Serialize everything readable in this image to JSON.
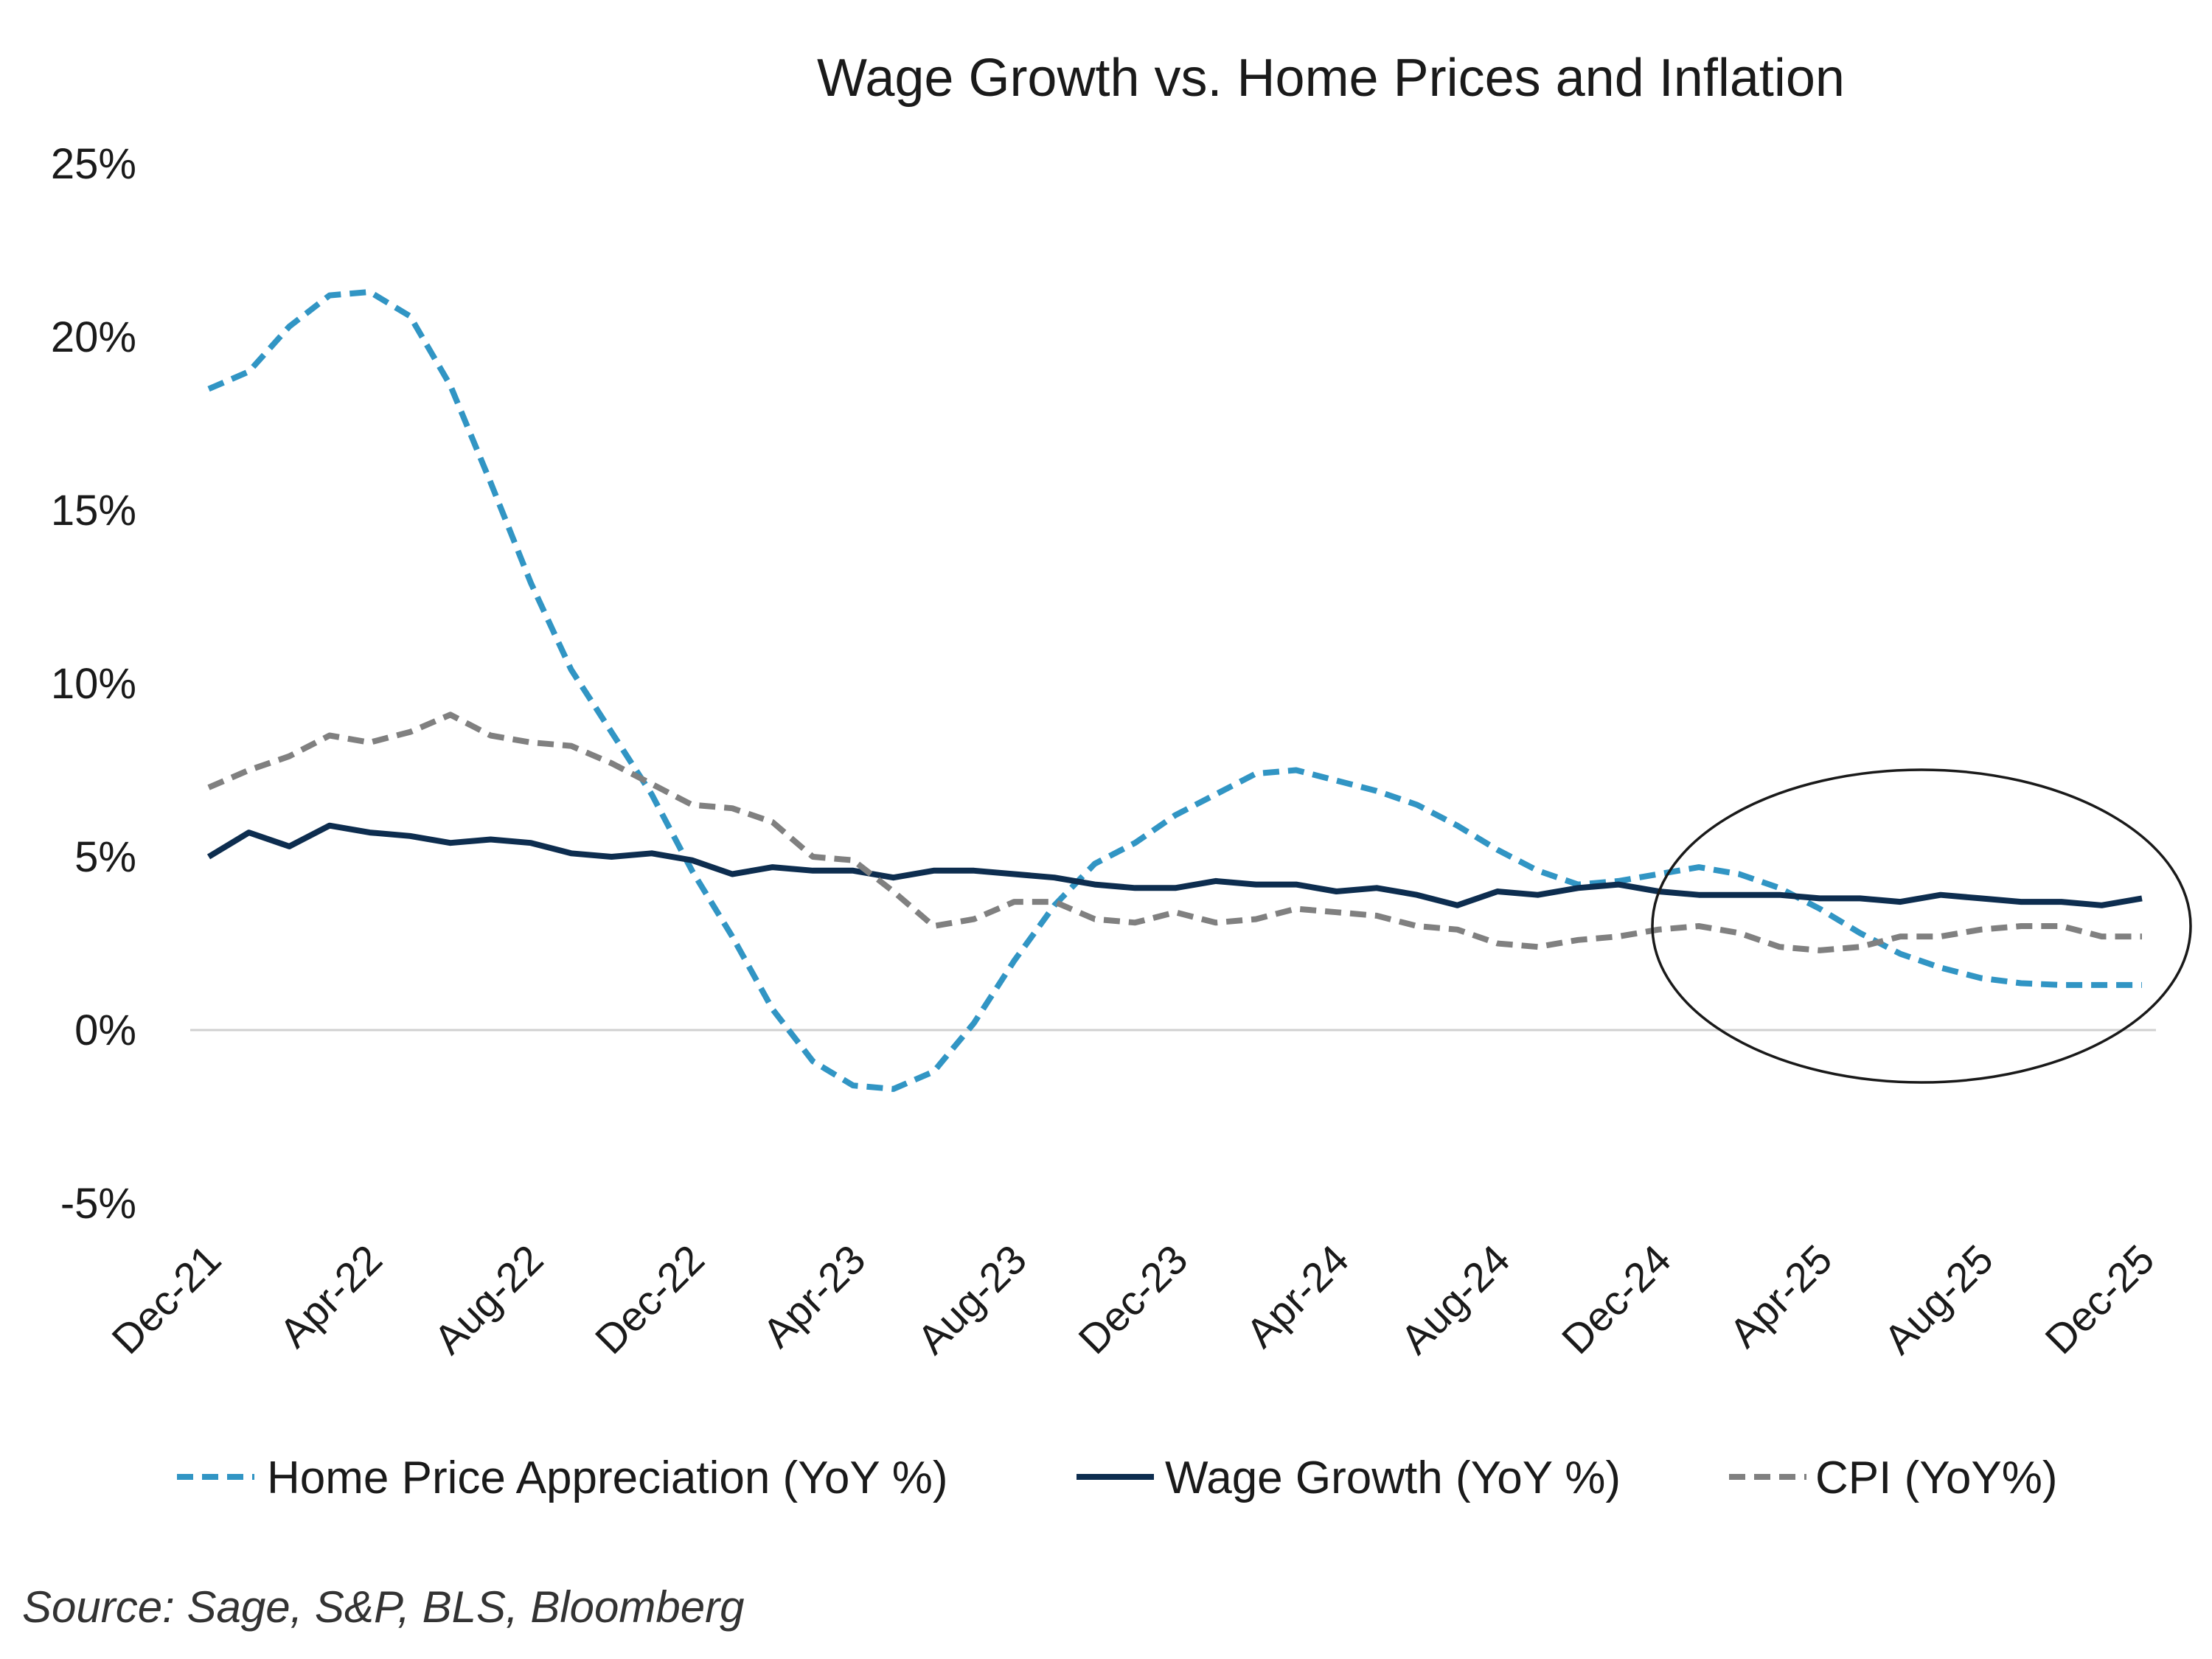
{
  "chart_data": {
    "type": "line",
    "title": "Wage Growth vs. Home Prices and Inflation",
    "xlabel": "",
    "ylabel": "",
    "ylim": [
      -5,
      25
    ],
    "y_ticks": [
      -5,
      0,
      5,
      10,
      15,
      20,
      25
    ],
    "y_tick_labels": [
      "-5%",
      "0%",
      "5%",
      "10%",
      "15%",
      "20%",
      "25%"
    ],
    "x_tick_labels": [
      "Dec-21",
      "Apr-22",
      "Aug-22",
      "Dec-22",
      "Apr-23",
      "Aug-23",
      "Dec-23",
      "Apr-24",
      "Aug-24",
      "Dec-24",
      "Apr-25",
      "Aug-25",
      "Dec-25"
    ],
    "x_tick_every": 4,
    "n_points": 49,
    "series": [
      {
        "name": "Home Price Appreciation (YoY %)",
        "color": "#3195c4",
        "style": "dashed",
        "values": [
          18.5,
          19.0,
          20.3,
          21.2,
          21.3,
          20.6,
          18.6,
          15.8,
          12.9,
          10.4,
          8.6,
          6.8,
          4.6,
          2.7,
          0.6,
          -0.9,
          -1.6,
          -1.7,
          -1.2,
          0.2,
          2.0,
          3.6,
          4.8,
          5.4,
          6.2,
          6.8,
          7.4,
          7.5,
          7.2,
          6.9,
          6.5,
          5.9,
          5.2,
          4.6,
          4.2,
          4.3,
          4.5,
          4.7,
          4.5,
          4.1,
          3.5,
          2.8,
          2.2,
          1.8,
          1.5,
          1.35,
          1.3,
          1.3,
          1.3
        ]
      },
      {
        "name": "Wage Growth (YoY %)",
        "color": "#0d2d4f",
        "style": "solid",
        "values": [
          5.0,
          5.7,
          5.3,
          5.9,
          5.7,
          5.6,
          5.4,
          5.5,
          5.4,
          5.1,
          5.0,
          5.1,
          4.9,
          4.5,
          4.7,
          4.6,
          4.6,
          4.4,
          4.6,
          4.6,
          4.5,
          4.4,
          4.2,
          4.1,
          4.1,
          4.3,
          4.2,
          4.2,
          4.0,
          4.1,
          3.9,
          3.6,
          4.0,
          3.9,
          4.1,
          4.2,
          4.0,
          3.9,
          3.9,
          3.9,
          3.8,
          3.8,
          3.7,
          3.9,
          3.8,
          3.7,
          3.7,
          3.6,
          3.8
        ]
      },
      {
        "name": "CPI (YoY%)",
        "color": "#808080",
        "style": "dashed",
        "values": [
          7.0,
          7.5,
          7.9,
          8.5,
          8.3,
          8.6,
          9.1,
          8.5,
          8.3,
          8.2,
          7.7,
          7.1,
          6.5,
          6.4,
          6.0,
          5.0,
          4.9,
          4.0,
          3.0,
          3.2,
          3.7,
          3.7,
          3.2,
          3.1,
          3.4,
          3.1,
          3.2,
          3.5,
          3.4,
          3.3,
          3.0,
          2.9,
          2.5,
          2.4,
          2.6,
          2.7,
          2.9,
          3.0,
          2.8,
          2.4,
          2.3,
          2.4,
          2.7,
          2.7,
          2.9,
          3.0,
          3.0,
          2.7,
          2.7
        ]
      }
    ],
    "legend": [
      "Home Price Appreciation (YoY %)",
      "Wage Growth (YoY %)",
      "CPI (YoY%)"
    ],
    "legend_position": "bottom",
    "annotation": "ellipse highlighting Dec-24 to Dec-25",
    "grid": false
  },
  "source_note": "Source: Sage, S&P, BLS, Bloomberg"
}
